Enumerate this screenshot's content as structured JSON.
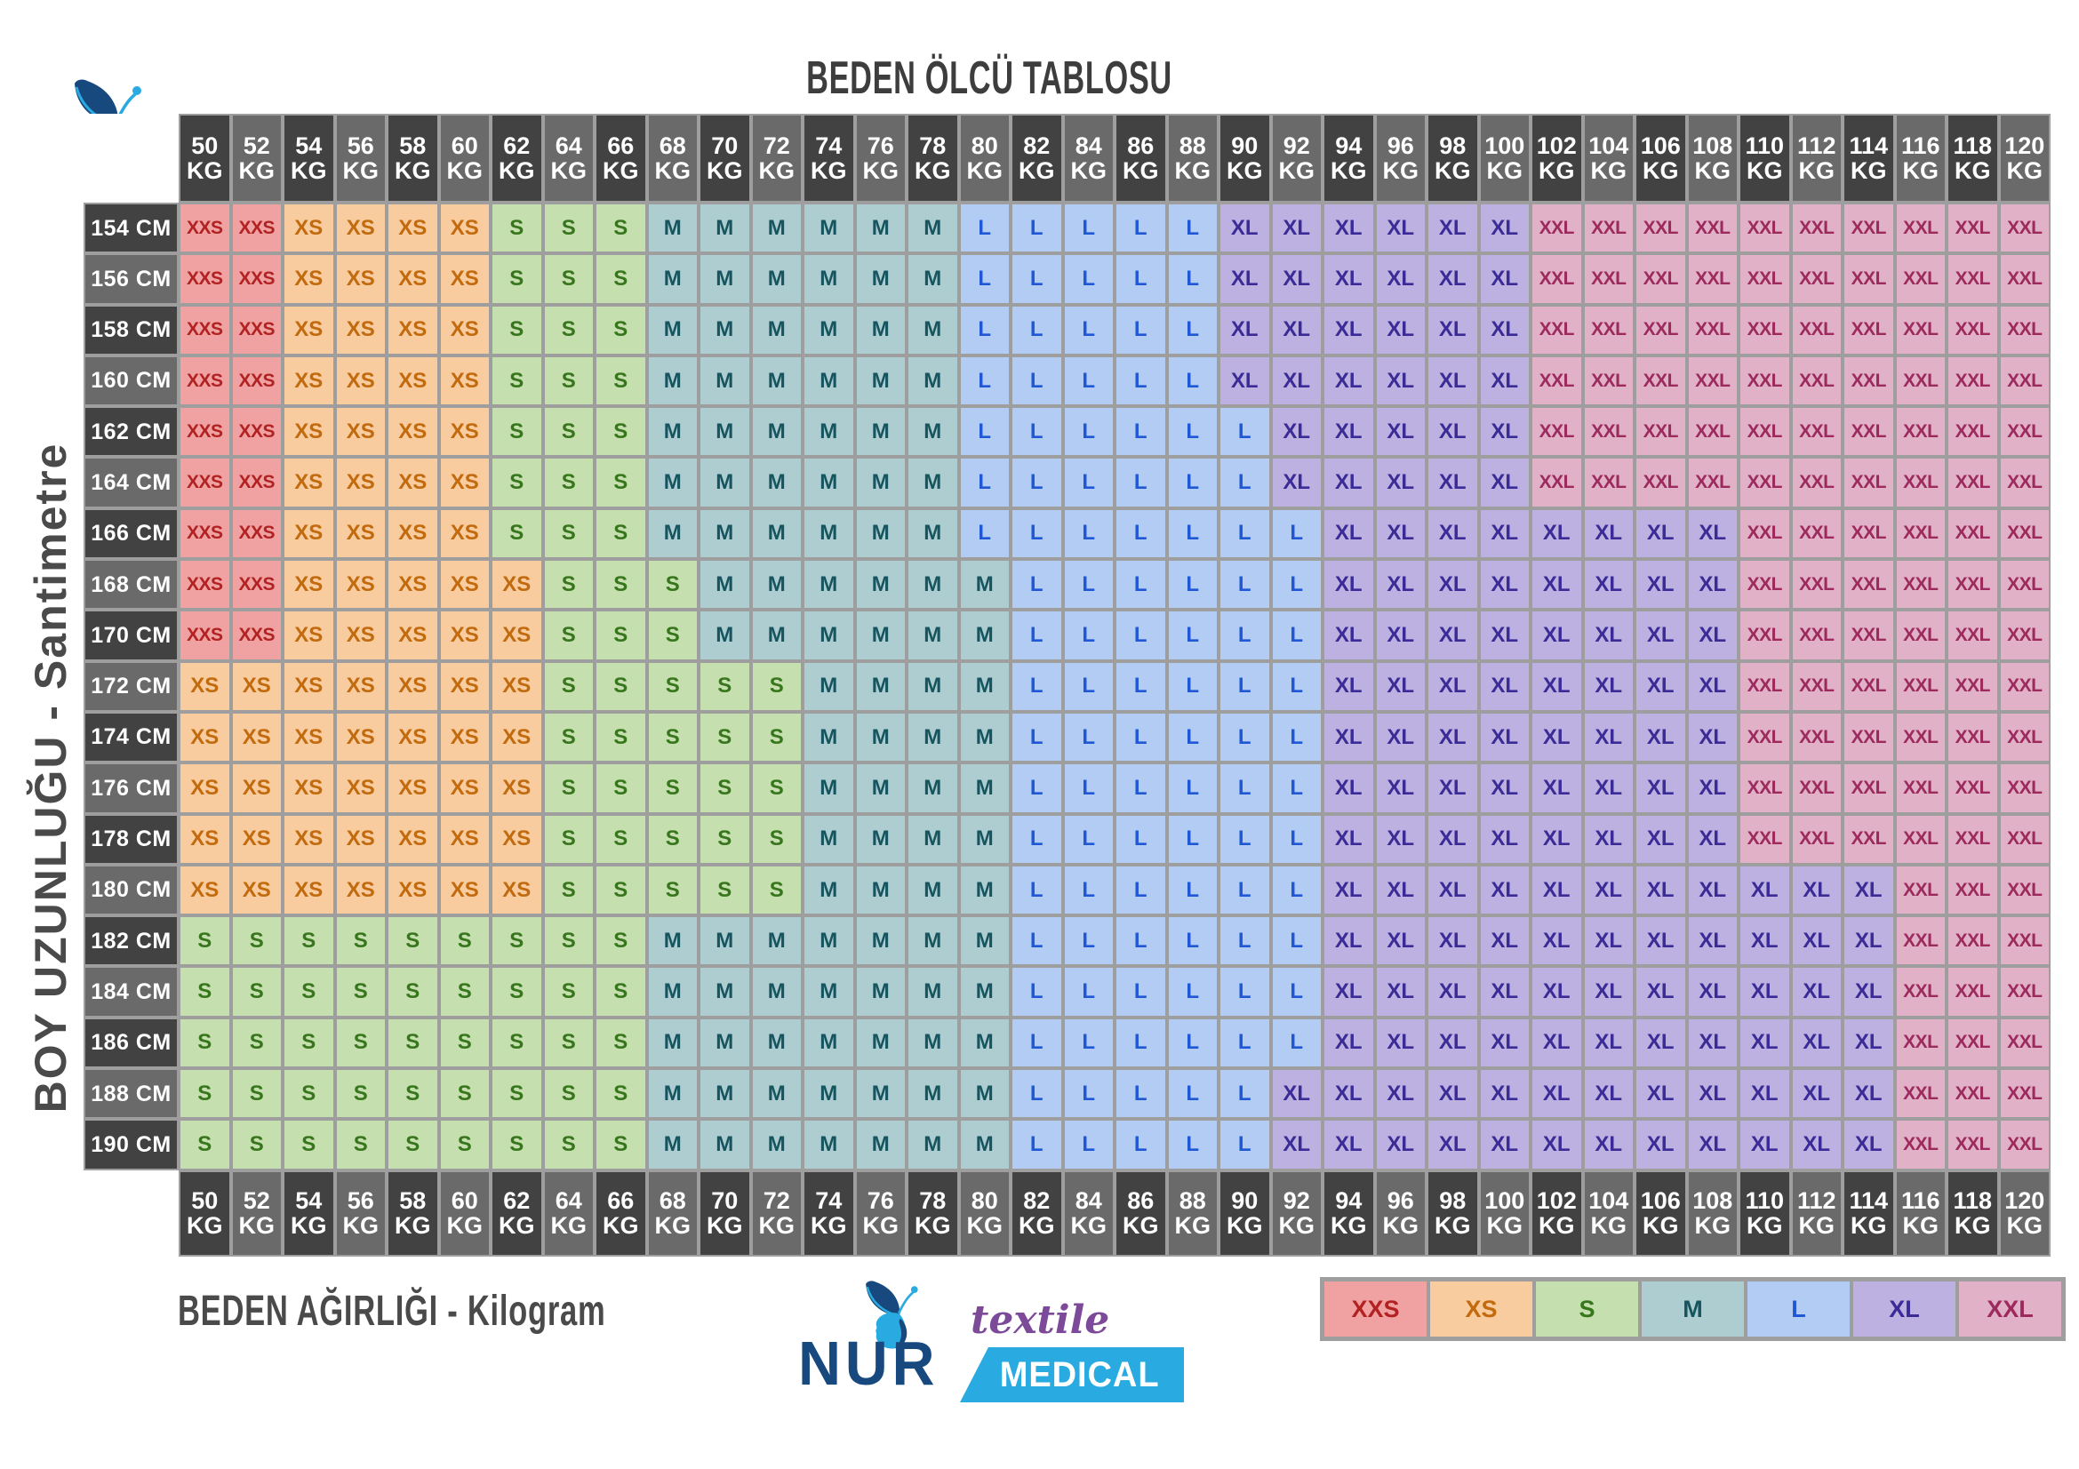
{
  "title": "BEDEN ÖLCÜ TABLOSU",
  "y_axis_label": "BOY UZUNLUĞU - Santimetre",
  "x_axis_label": "BEDEN AĞIRLIĞI - Kilogram",
  "weight_unit": "KG",
  "height_unit": "CM",
  "logo": {
    "brand": "NUR",
    "tagline_top": "textile",
    "tagline_bottom": "MEDICAL"
  },
  "legend": [
    "XXS",
    "XS",
    "S",
    "M",
    "L",
    "XL",
    "XXL"
  ],
  "colors": {
    "XXS": {
      "bg": "#f0a2a2",
      "fg": "#b22222"
    },
    "XS": {
      "bg": "#f8cc9e",
      "fg": "#c26a0e"
    },
    "S": {
      "bg": "#c5dfae",
      "fg": "#38761d"
    },
    "M": {
      "bg": "#aecdd1",
      "fg": "#16555f"
    },
    "L": {
      "bg": "#b2ccf4",
      "fg": "#1f57d4"
    },
    "XL": {
      "bg": "#bcb1e0",
      "fg": "#3a2b96"
    },
    "XXL": {
      "bg": "#e1b1c7",
      "fg": "#9c2a5d"
    }
  },
  "header_theme": {
    "dark": "#424242",
    "light": "#6a6a6a",
    "fg": "#ffffff",
    "grid": "#9e9e9e"
  },
  "brand_colors": {
    "navy": "#17497e",
    "light_blue": "#29abe2",
    "purple": "#7c4a99"
  },
  "chart_data": {
    "type": "heatmap",
    "title": "BEDEN ÖLCÜ TABLOSU",
    "xlabel": "BEDEN AĞIRLIĞI - Kilogram",
    "ylabel": "BOY UZUNLUĞU - Santimetre",
    "weights_kg": [
      50,
      52,
      54,
      56,
      58,
      60,
      62,
      64,
      66,
      68,
      70,
      72,
      74,
      76,
      78,
      80,
      82,
      84,
      86,
      88,
      90,
      92,
      94,
      96,
      98,
      100,
      102,
      104,
      106,
      108,
      110,
      112,
      114,
      116,
      118,
      120
    ],
    "size_scale": [
      "XXS",
      "XS",
      "S",
      "M",
      "L",
      "XL",
      "XXL"
    ],
    "rows": [
      {
        "height_cm": 154,
        "segments": [
          [
            "XXS",
            50,
            52
          ],
          [
            "XS",
            54,
            60
          ],
          [
            "S",
            62,
            66
          ],
          [
            "M",
            68,
            78
          ],
          [
            "L",
            80,
            88
          ],
          [
            "XL",
            90,
            100
          ],
          [
            "XXL",
            102,
            120
          ]
        ]
      },
      {
        "height_cm": 156,
        "segments": [
          [
            "XXS",
            50,
            52
          ],
          [
            "XS",
            54,
            60
          ],
          [
            "S",
            62,
            66
          ],
          [
            "M",
            68,
            78
          ],
          [
            "L",
            80,
            88
          ],
          [
            "XL",
            90,
            100
          ],
          [
            "XXL",
            102,
            120
          ]
        ]
      },
      {
        "height_cm": 158,
        "segments": [
          [
            "XXS",
            50,
            52
          ],
          [
            "XS",
            54,
            60
          ],
          [
            "S",
            62,
            66
          ],
          [
            "M",
            68,
            78
          ],
          [
            "L",
            80,
            88
          ],
          [
            "XL",
            90,
            100
          ],
          [
            "XXL",
            102,
            120
          ]
        ]
      },
      {
        "height_cm": 160,
        "segments": [
          [
            "XXS",
            50,
            52
          ],
          [
            "XS",
            54,
            60
          ],
          [
            "S",
            62,
            66
          ],
          [
            "M",
            68,
            78
          ],
          [
            "L",
            80,
            88
          ],
          [
            "XL",
            90,
            100
          ],
          [
            "XXL",
            102,
            120
          ]
        ]
      },
      {
        "height_cm": 162,
        "segments": [
          [
            "XXS",
            50,
            52
          ],
          [
            "XS",
            54,
            60
          ],
          [
            "S",
            62,
            66
          ],
          [
            "M",
            68,
            78
          ],
          [
            "L",
            80,
            90
          ],
          [
            "XL",
            92,
            100
          ],
          [
            "XXL",
            102,
            120
          ]
        ]
      },
      {
        "height_cm": 164,
        "segments": [
          [
            "XXS",
            50,
            52
          ],
          [
            "XS",
            54,
            60
          ],
          [
            "S",
            62,
            66
          ],
          [
            "M",
            68,
            78
          ],
          [
            "L",
            80,
            90
          ],
          [
            "XL",
            92,
            100
          ],
          [
            "XXL",
            102,
            120
          ]
        ]
      },
      {
        "height_cm": 166,
        "segments": [
          [
            "XXS",
            50,
            52
          ],
          [
            "XS",
            54,
            60
          ],
          [
            "S",
            62,
            66
          ],
          [
            "M",
            68,
            78
          ],
          [
            "L",
            80,
            92
          ],
          [
            "XL",
            94,
            108
          ],
          [
            "XXL",
            110,
            120
          ]
        ]
      },
      {
        "height_cm": 168,
        "segments": [
          [
            "XXS",
            50,
            52
          ],
          [
            "XS",
            54,
            62
          ],
          [
            "S",
            64,
            68
          ],
          [
            "M",
            70,
            80
          ],
          [
            "L",
            82,
            92
          ],
          [
            "XL",
            94,
            108
          ],
          [
            "XXL",
            110,
            120
          ]
        ]
      },
      {
        "height_cm": 170,
        "segments": [
          [
            "XXS",
            50,
            52
          ],
          [
            "XS",
            54,
            62
          ],
          [
            "S",
            64,
            68
          ],
          [
            "M",
            70,
            80
          ],
          [
            "L",
            82,
            92
          ],
          [
            "XL",
            94,
            108
          ],
          [
            "XXL",
            110,
            120
          ]
        ]
      },
      {
        "height_cm": 172,
        "segments": [
          [
            "XS",
            50,
            62
          ],
          [
            "S",
            64,
            72
          ],
          [
            "M",
            74,
            80
          ],
          [
            "L",
            82,
            92
          ],
          [
            "XL",
            94,
            108
          ],
          [
            "XXL",
            110,
            120
          ]
        ]
      },
      {
        "height_cm": 174,
        "segments": [
          [
            "XS",
            50,
            62
          ],
          [
            "S",
            64,
            72
          ],
          [
            "M",
            74,
            80
          ],
          [
            "L",
            82,
            92
          ],
          [
            "XL",
            94,
            108
          ],
          [
            "XXL",
            110,
            120
          ]
        ]
      },
      {
        "height_cm": 176,
        "segments": [
          [
            "XS",
            50,
            62
          ],
          [
            "S",
            64,
            72
          ],
          [
            "M",
            74,
            80
          ],
          [
            "L",
            82,
            92
          ],
          [
            "XL",
            94,
            108
          ],
          [
            "XXL",
            110,
            120
          ]
        ]
      },
      {
        "height_cm": 178,
        "segments": [
          [
            "XS",
            50,
            62
          ],
          [
            "S",
            64,
            72
          ],
          [
            "M",
            74,
            80
          ],
          [
            "L",
            82,
            92
          ],
          [
            "XL",
            94,
            108
          ],
          [
            "XXL",
            110,
            120
          ]
        ]
      },
      {
        "height_cm": 180,
        "segments": [
          [
            "XS",
            50,
            62
          ],
          [
            "S",
            64,
            72
          ],
          [
            "M",
            74,
            80
          ],
          [
            "L",
            82,
            92
          ],
          [
            "XL",
            94,
            114
          ],
          [
            "XXL",
            116,
            120
          ]
        ]
      },
      {
        "height_cm": 182,
        "segments": [
          [
            "S",
            50,
            66
          ],
          [
            "M",
            68,
            80
          ],
          [
            "L",
            82,
            92
          ],
          [
            "XL",
            94,
            114
          ],
          [
            "XXL",
            116,
            120
          ]
        ]
      },
      {
        "height_cm": 184,
        "segments": [
          [
            "S",
            50,
            66
          ],
          [
            "M",
            68,
            80
          ],
          [
            "L",
            82,
            92
          ],
          [
            "XL",
            94,
            114
          ],
          [
            "XXL",
            116,
            120
          ]
        ]
      },
      {
        "height_cm": 186,
        "segments": [
          [
            "S",
            50,
            66
          ],
          [
            "M",
            68,
            80
          ],
          [
            "L",
            82,
            92
          ],
          [
            "XL",
            94,
            114
          ],
          [
            "XXL",
            116,
            120
          ]
        ]
      },
      {
        "height_cm": 188,
        "segments": [
          [
            "S",
            50,
            66
          ],
          [
            "M",
            68,
            80
          ],
          [
            "L",
            82,
            90
          ],
          [
            "XL",
            92,
            114
          ],
          [
            "XXL",
            116,
            120
          ]
        ]
      },
      {
        "height_cm": 190,
        "segments": [
          [
            "S",
            50,
            66
          ],
          [
            "M",
            68,
            80
          ],
          [
            "L",
            82,
            90
          ],
          [
            "XL",
            92,
            114
          ],
          [
            "XXL",
            116,
            120
          ]
        ]
      }
    ]
  }
}
